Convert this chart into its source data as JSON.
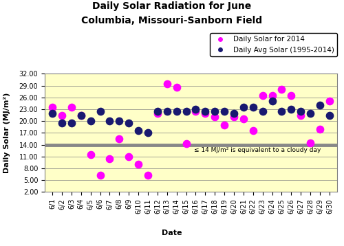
{
  "title_line1": "Daily Solar Radiation for June",
  "title_line2": "Columbia, Missouri-Sanborn Field",
  "xlabel": "Date",
  "ylabel": "Daily Solar (MJ/m²)",
  "legend_2014": "Daily Solar for 2014",
  "legend_avg": "Daily Avg Solar (1995-2014)",
  "cloudy_label": "≤ 14 MJ/m² is equivalent to a cloudy day",
  "cloudy_threshold": 14.0,
  "ylim": [
    2.0,
    32.0
  ],
  "yticks": [
    2.0,
    5.0,
    8.0,
    11.0,
    14.0,
    17.0,
    20.0,
    23.0,
    26.0,
    29.0,
    32.0
  ],
  "dates": [
    "6/1",
    "6/2",
    "6/3",
    "6/4",
    "6/5",
    "6/6",
    "6/7",
    "6/8",
    "6/9",
    "6/10",
    "6/11",
    "6/12",
    "6/13",
    "6/14",
    "6/15",
    "6/16",
    "6/17",
    "6/18",
    "6/19",
    "6/20",
    "6/21",
    "6/22",
    "6/23",
    "6/24",
    "6/25",
    "6/26",
    "6/27",
    "6/28",
    "6/29",
    "6/30"
  ],
  "solar_2014": [
    23.5,
    21.5,
    23.5,
    21.5,
    11.5,
    6.3,
    10.5,
    15.5,
    11.0,
    9.0,
    6.3,
    22.0,
    29.5,
    28.5,
    14.2,
    22.5,
    22.0,
    21.0,
    19.0,
    21.0,
    20.5,
    17.5,
    26.5,
    26.5,
    28.0,
    26.5,
    21.5,
    14.5,
    18.0,
    25.0
  ],
  "solar_avg": [
    22.0,
    19.5,
    19.5,
    21.5,
    20.0,
    22.5,
    20.0,
    20.0,
    19.5,
    17.5,
    17.0,
    22.5,
    22.5,
    22.5,
    22.5,
    23.0,
    22.5,
    22.5,
    22.5,
    22.0,
    23.5,
    23.5,
    22.5,
    25.0,
    22.5,
    23.0,
    22.5,
    22.0,
    24.0,
    21.5
  ],
  "color_2014": "#FF00FF",
  "color_avg": "#191970",
  "background_color": "#FFFFC8",
  "cloudy_line_color": "#888888",
  "title_fontsize": 10,
  "axis_label_fontsize": 8,
  "tick_fontsize": 7,
  "legend_fontsize": 7.5,
  "marker_size": 55,
  "cloudy_text_fontsize": 6.5
}
